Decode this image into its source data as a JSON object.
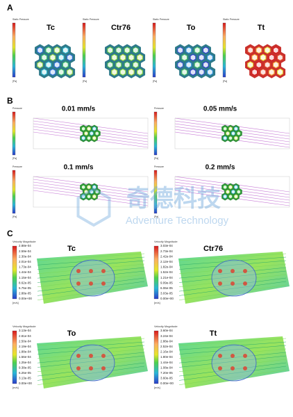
{
  "panel_a": {
    "label": "A",
    "heading": "Static Pressure",
    "unit": "[Pa]",
    "items": [
      {
        "title": "Tc"
      },
      {
        "title": "Ctr76"
      },
      {
        "title": "To"
      },
      {
        "title": "Tt"
      }
    ]
  },
  "panel_b": {
    "label": "B",
    "heading": "Pressure",
    "unit": "[Pa]",
    "items": [
      {
        "title": "0.01 mm/s"
      },
      {
        "title": "0.05 mm/s"
      },
      {
        "title": "0.1 mm/s"
      },
      {
        "title": "0.2 mm/s"
      }
    ]
  },
  "panel_c": {
    "label": "C",
    "heading": "Velocity Magnitude",
    "unit": "[m/s]",
    "items": [
      {
        "title": "Tc",
        "ticks": [
          "2.88e-04",
          "2.59e-04",
          "2.30e-04",
          "2.01e-04",
          "1.73e-04",
          "1.44e-04",
          "1.15e-04",
          "8.62e-05",
          "5.75e-05",
          "2.88e-05",
          "0.00e+00"
        ]
      },
      {
        "title": "Ctr76",
        "ticks": [
          "3.03e-04",
          "2.73e-04",
          "2.42e-04",
          "2.12e-04",
          "1.82e-04",
          "1.52e-04",
          "1.21e-04",
          "9.09e-05",
          "6.06e-05",
          "3.03e-05",
          "0.00e+00"
        ]
      },
      {
        "title": "To",
        "ticks": [
          "3.13e-04",
          "2.81e-04",
          "2.50e-04",
          "2.19e-04",
          "1.88e-04",
          "1.56e-04",
          "1.25e-04",
          "9.38e-05",
          "6.25e-05",
          "3.13e-05",
          "0.00e+00"
        ]
      },
      {
        "title": "Tt",
        "ticks": [
          "3.60e-04",
          "3.24e-04",
          "2.88e-04",
          "2.52e-04",
          "2.16e-04",
          "1.80e-04",
          "1.44e-04",
          "1.08e-04",
          "7.20e-05",
          "3.60e-05",
          "0.00e+00"
        ]
      }
    ]
  },
  "watermark": {
    "name": "奇德科技",
    "subtitle": "Adventure Technology"
  }
}
